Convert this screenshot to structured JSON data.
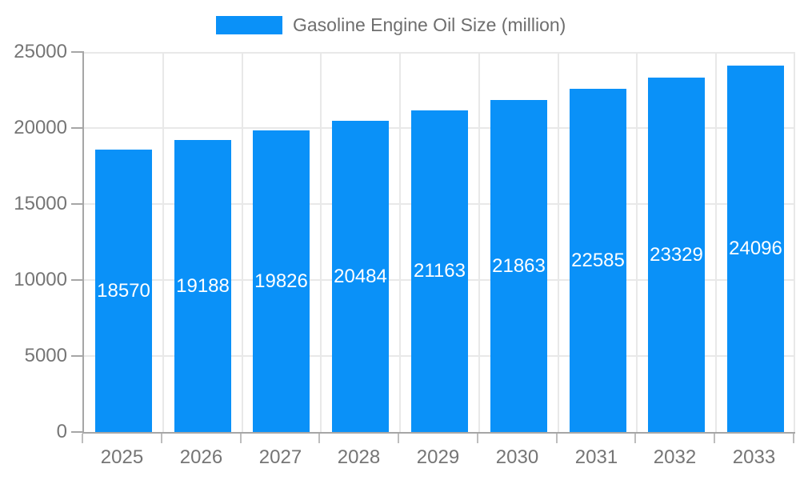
{
  "chart_data": {
    "type": "bar",
    "title": "Gasoline Engine Oil Size (million)",
    "categories": [
      "2025",
      "2026",
      "2027",
      "2028",
      "2029",
      "2030",
      "2031",
      "2032",
      "2033"
    ],
    "values": [
      18570,
      19188,
      19826,
      20484,
      21163,
      21863,
      22585,
      23329,
      24096
    ],
    "series_name": "Gasoline Engine Oil Size (million)",
    "xlabel": "",
    "ylabel": "",
    "ylim": [
      0,
      25000
    ],
    "ytick_step": 5000,
    "ytick_labels": [
      "0",
      "5000",
      "10000",
      "15000",
      "20000",
      "25000"
    ],
    "grid": true,
    "legend_position": "top",
    "data_labels": "inside-center",
    "colors": {
      "bar": "#0a91f8",
      "bar_label_text": "#ffffff",
      "axis_line": "#a6a6a6",
      "gridline": "#e8e8e8",
      "tick_text": "#757575",
      "legend_text": "#6e6e6e",
      "background": "#ffffff"
    }
  }
}
